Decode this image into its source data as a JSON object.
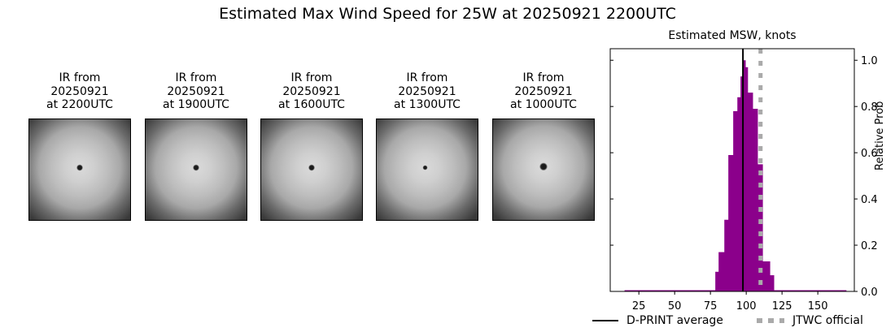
{
  "suptitle": "Estimated Max Wind Speed for 25W at 20250921 2200UTC",
  "satellite_panels": [
    {
      "line1": "IR from",
      "line2": "20250921",
      "line3": "at 2200UTC",
      "eye_x": 0.5,
      "eye_y": 0.48,
      "eye_size": 4
    },
    {
      "line1": "IR from",
      "line2": "20250921",
      "line3": "at 1900UTC",
      "eye_x": 0.5,
      "eye_y": 0.48,
      "eye_size": 4
    },
    {
      "line1": "IR from",
      "line2": "20250921",
      "line3": "at 1600UTC",
      "eye_x": 0.5,
      "eye_y": 0.48,
      "eye_size": 4
    },
    {
      "line1": "IR from",
      "line2": "20250921",
      "line3": "at 1300UTC",
      "eye_x": 0.48,
      "eye_y": 0.48,
      "eye_size": 3
    },
    {
      "line1": "IR from",
      "line2": "20250921",
      "line3": "at 1000UTC",
      "eye_x": 0.5,
      "eye_y": 0.47,
      "eye_size": 5
    }
  ],
  "chart_data": {
    "type": "bar",
    "title": "Estimated MSW, knots",
    "xlabel": "",
    "ylabel": "Relative Prob",
    "xlim": [
      5,
      175.5
    ],
    "ylim": [
      0,
      1.05
    ],
    "xticks": [
      25,
      50,
      75,
      100,
      125,
      150
    ],
    "yticks": [
      "0.0",
      "0.2",
      "0.4",
      "0.6",
      "0.8",
      "1.0"
    ],
    "y_axis_side": "right",
    "grid": false,
    "bar_color": "#8b008b",
    "baseline_range": [
      15,
      170
    ],
    "bins": [
      {
        "x0": 78.4,
        "x1": 80.7,
        "prob": 0.085
      },
      {
        "x0": 80.7,
        "x1": 84.7,
        "prob": 0.17
      },
      {
        "x0": 84.7,
        "x1": 87.5,
        "prob": 0.31
      },
      {
        "x0": 87.5,
        "x1": 90.9,
        "prob": 0.59
      },
      {
        "x0": 90.9,
        "x1": 93.8,
        "prob": 0.78
      },
      {
        "x0": 93.8,
        "x1": 96.0,
        "prob": 0.84
      },
      {
        "x0": 96.0,
        "x1": 97.7,
        "prob": 0.93
      },
      {
        "x0": 97.7,
        "x1": 99.4,
        "prob": 1.0
      },
      {
        "x0": 99.4,
        "x1": 101.0,
        "prob": 0.97
      },
      {
        "x0": 101.0,
        "x1": 104.5,
        "prob": 0.86
      },
      {
        "x0": 104.5,
        "x1": 107.9,
        "prob": 0.79
      },
      {
        "x0": 107.9,
        "x1": 111.4,
        "prob": 0.55
      },
      {
        "x0": 111.4,
        "x1": 116.5,
        "prob": 0.13
      },
      {
        "x0": 116.5,
        "x1": 119.3,
        "prob": 0.07
      }
    ],
    "lines": [
      {
        "name": "D-PRINT average",
        "x": 97.7,
        "color": "#000000",
        "style": "solid"
      },
      {
        "name": "JTWC official",
        "x": 110,
        "color": "#aaaaaa",
        "style": "dotted"
      }
    ],
    "legend": {
      "position": "below",
      "entries": [
        "D-PRINT average",
        "JTWC official"
      ]
    }
  }
}
